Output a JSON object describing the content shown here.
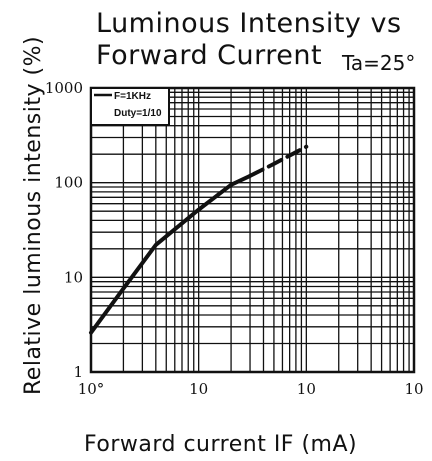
{
  "chart_data": {
    "type": "line",
    "title_line1": "Luminous Intensity vs",
    "title_line2": "Forward Current",
    "condition": "Ta=25°",
    "xlabel": "Forward current IF (mA)",
    "ylabel": "Relative luminous intensity (%)",
    "x_scale": "log",
    "y_scale": "log",
    "xlim": [
      1,
      1000
    ],
    "ylim": [
      1,
      1000
    ],
    "x_ticks": [
      {
        "value": 1,
        "label": "10°"
      },
      {
        "value": 10,
        "label": "10"
      },
      {
        "value": 100,
        "label": "10"
      },
      {
        "value": 1000,
        "label": "10"
      }
    ],
    "y_ticks": [
      {
        "value": 1,
        "label": "1"
      },
      {
        "value": 10,
        "label": "10"
      },
      {
        "value": 100,
        "label": "100"
      },
      {
        "value": 1000,
        "label": "1000"
      }
    ],
    "grid": true,
    "legend": {
      "placement": "top-left",
      "lines": [
        "F=1KHz",
        "Duty=1/10"
      ]
    },
    "series": [
      {
        "style": "solid",
        "points": [
          [
            1,
            2.6
          ],
          [
            2,
            7.6
          ],
          [
            4,
            22
          ],
          [
            10,
            52
          ],
          [
            20,
            95
          ],
          [
            30,
            118
          ]
        ]
      },
      {
        "style": "dashed",
        "points": [
          [
            30,
            118
          ],
          [
            50,
            158
          ],
          [
            100,
            240
          ]
        ]
      }
    ]
  }
}
